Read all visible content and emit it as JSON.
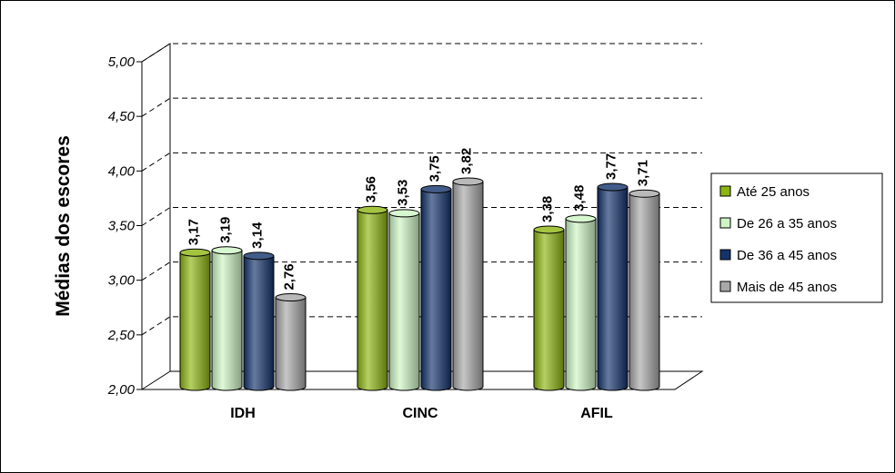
{
  "chart_data": {
    "type": "bar",
    "title": "",
    "xlabel": "",
    "ylabel": "Médias dos escores",
    "ylim": [
      2.0,
      5.0
    ],
    "ytick_labels": [
      "2,00",
      "2,50",
      "3,00",
      "3,50",
      "4,00",
      "4,50",
      "5,00"
    ],
    "categories": [
      "IDH",
      "CINC",
      "AFIL"
    ],
    "series": [
      {
        "name": "Até 25 anos",
        "values": [
          3.17,
          3.56,
          3.38
        ],
        "labels": [
          "3,17",
          "3,56",
          "3,38"
        ],
        "color": "#8db510"
      },
      {
        "name": "De 26 a 35 anos",
        "values": [
          3.19,
          3.53,
          3.48
        ],
        "labels": [
          "3,19",
          "3,53",
          "3,48"
        ],
        "color": "#cdf5c4"
      },
      {
        "name": "De 36 a 45 anos",
        "values": [
          3.14,
          3.75,
          3.77
        ],
        "labels": [
          "3,14",
          "3,75",
          "3,77"
        ],
        "color": "#13336b"
      },
      {
        "name": "Mais de 45 anos",
        "values": [
          2.76,
          3.82,
          3.71
        ],
        "labels": [
          "2,76",
          "3,82",
          "3,71"
        ],
        "color": "#a8a8a8"
      }
    ],
    "grid": true,
    "legend_position": "right"
  }
}
